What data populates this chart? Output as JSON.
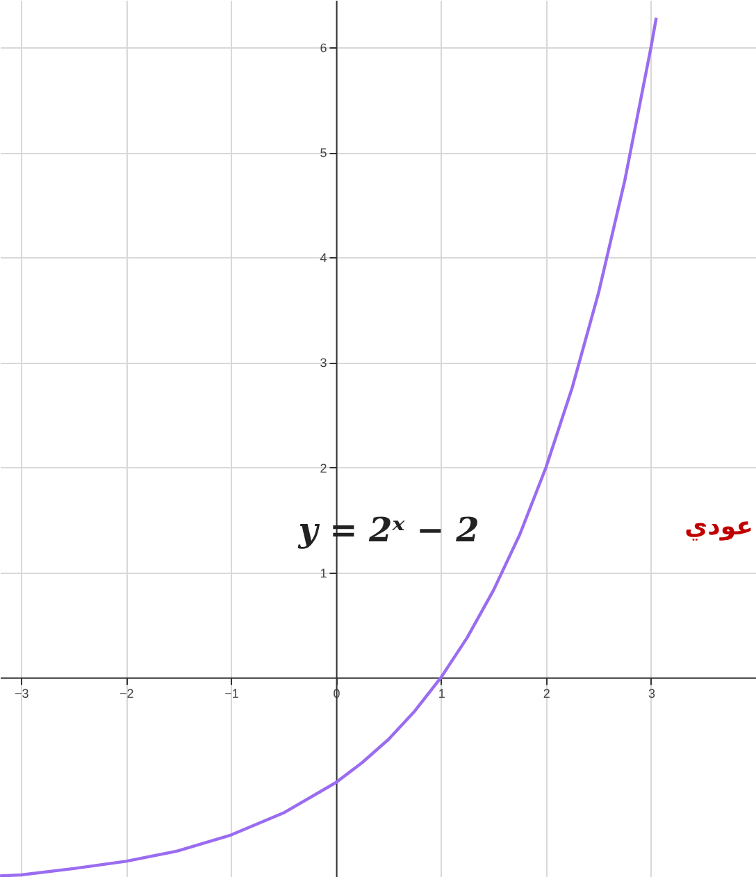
{
  "chart_data": {
    "type": "line",
    "x": [
      -3.2,
      -3,
      -2.5,
      -2,
      -1.5,
      -1,
      -0.5,
      0,
      0.25,
      0.5,
      0.75,
      1,
      1.25,
      1.5,
      1.75,
      2,
      2.25,
      2.5,
      2.75,
      3,
      3.05
    ],
    "series": [
      {
        "color": "#9a6cf0",
        "values": [
          -1.89,
          -1.88,
          -1.82,
          -1.75,
          -1.65,
          -1.5,
          -1.29,
          -1,
          -0.81,
          -0.59,
          -0.32,
          0,
          0.38,
          0.83,
          1.36,
          2,
          2.76,
          3.66,
          4.73,
          6,
          6.28
        ]
      }
    ],
    "xlim": [
      -3.2,
      4
    ],
    "ylim": [
      -1.9,
      6.45
    ],
    "xticks": [
      -3,
      -2,
      -1,
      0,
      1,
      2,
      3
    ],
    "yticks": [
      1,
      2,
      3,
      4,
      5,
      6
    ],
    "grid": true,
    "annotations": [
      "y = 2ˣ − 2",
      "عودي"
    ]
  }
}
